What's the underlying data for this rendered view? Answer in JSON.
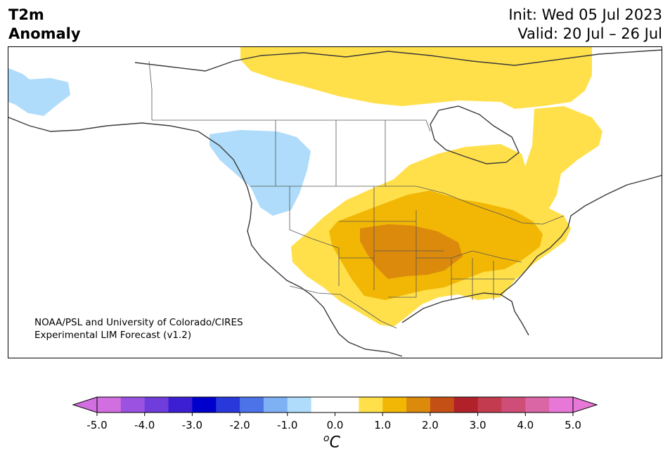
{
  "title": {
    "line1": "T2m",
    "line2": "Anomaly"
  },
  "dates": {
    "init": "Init: Wed 05 Jul 2023",
    "valid": "Valid: 20 Jul – 26 Jul"
  },
  "credit": {
    "line1": "NOAA/PSL and University of Colorado/CIRES",
    "line2": "Experimental LIM Forecast (v1.2)"
  },
  "colorbar": {
    "ticks": [
      "-5.0",
      "-4.0",
      "-3.0",
      "-2.0",
      "-1.0",
      "0.0",
      "1.0",
      "2.0",
      "3.0",
      "4.0",
      "5.0"
    ],
    "unit_base": "o",
    "unit": "C",
    "bins": [
      {
        "from": -5.0,
        "to": -4.5,
        "color": "#d26fe0"
      },
      {
        "from": -4.5,
        "to": -4.0,
        "color": "#9b52e0"
      },
      {
        "from": -4.0,
        "to": -3.5,
        "color": "#6e3ddb"
      },
      {
        "from": -3.5,
        "to": -3.0,
        "color": "#3d1fd3"
      },
      {
        "from": -3.0,
        "to": -2.5,
        "color": "#0000cc"
      },
      {
        "from": -2.5,
        "to": -2.0,
        "color": "#2838db"
      },
      {
        "from": -2.0,
        "to": -1.5,
        "color": "#4d73e8"
      },
      {
        "from": -1.5,
        "to": -1.0,
        "color": "#7eb1f4"
      },
      {
        "from": -1.0,
        "to": -0.5,
        "color": "#aedcfa"
      },
      {
        "from": -0.5,
        "to": 0.0,
        "color": "#ffffff"
      },
      {
        "from": 0.0,
        "to": 0.5,
        "color": "#ffffff"
      },
      {
        "from": 0.5,
        "to": 1.0,
        "color": "#ffe04a"
      },
      {
        "from": 1.0,
        "to": 1.5,
        "color": "#f2b705"
      },
      {
        "from": 1.5,
        "to": 2.0,
        "color": "#dc8a0c"
      },
      {
        "from": 2.0,
        "to": 2.5,
        "color": "#c45016"
      },
      {
        "from": 2.5,
        "to": 3.0,
        "color": "#b0212a"
      },
      {
        "from": 3.0,
        "to": 3.5,
        "color": "#c23b4e"
      },
      {
        "from": 3.5,
        "to": 4.0,
        "color": "#cf4e78"
      },
      {
        "from": 4.0,
        "to": 4.5,
        "color": "#db66a6"
      },
      {
        "from": 4.5,
        "to": 5.0,
        "color": "#e878d8"
      }
    ],
    "under_color": "#d26fe0",
    "over_color": "#e878d8"
  },
  "map": {
    "colors": {
      "cool": "#aedcfa",
      "warm1": "#ffe04a",
      "warm2": "#f2b705",
      "warm3": "#dc8a0c",
      "coast": "#3a3a3a",
      "border": "#555555"
    }
  }
}
